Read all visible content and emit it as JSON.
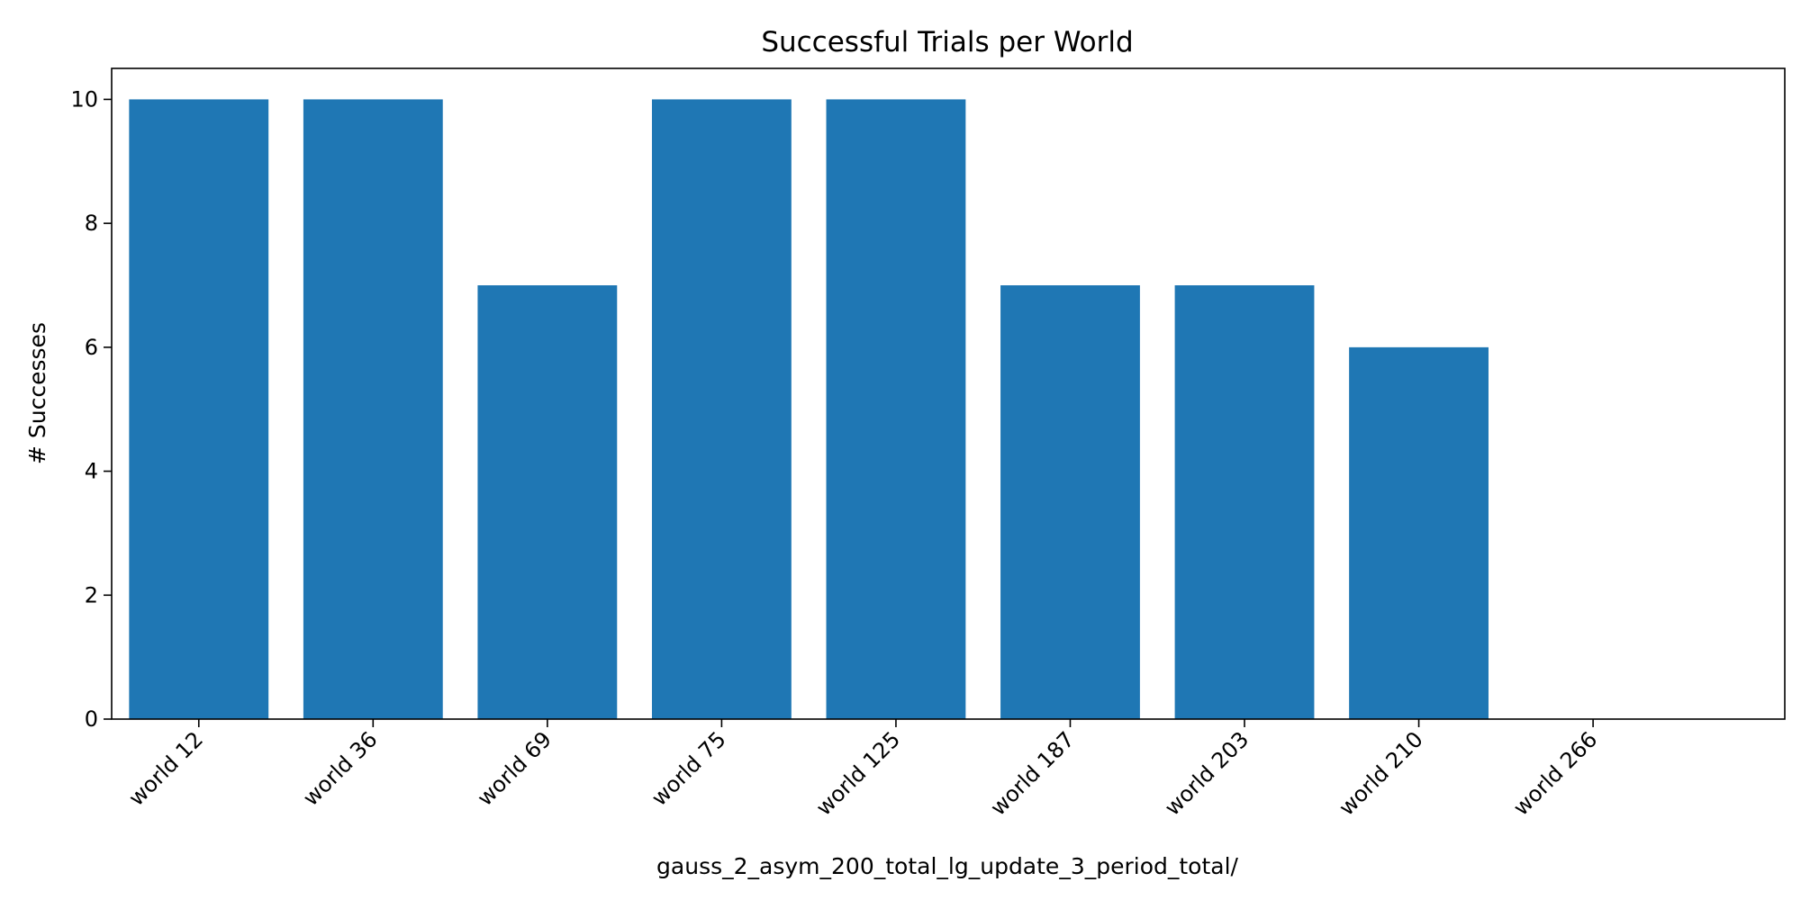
{
  "chart_data": {
    "type": "bar",
    "title": "Successful Trials per World",
    "xlabel": "gauss_2_asym_200_total_lg_update_3_period_total/",
    "ylabel": "# Successes",
    "categories": [
      "world 12",
      "world 36",
      "world 69",
      "world 75",
      "world 125",
      "world 187",
      "world 203",
      "world 210",
      "world 266"
    ],
    "values": [
      10,
      10,
      7,
      10,
      10,
      7,
      7,
      6,
      0
    ],
    "ylim": [
      0,
      10.5
    ],
    "yticks": [
      0,
      2,
      4,
      6,
      8,
      10
    ],
    "grid": false,
    "legend": "none",
    "bar_color": "#1f77b4"
  }
}
